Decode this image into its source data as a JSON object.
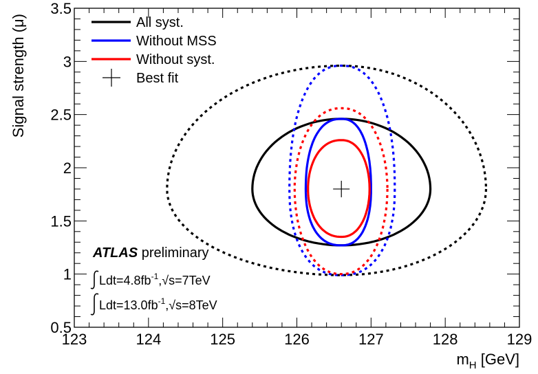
{
  "chart_data": {
    "type": "line",
    "xlabel_main": "m",
    "xlabel_sub": "H",
    "xlabel_unit": " [GeV]",
    "ylabel": "Signal strength (μ)",
    "xlim": [
      123,
      129
    ],
    "ylim": [
      0.5,
      3.5
    ],
    "x_ticks": [
      "123",
      "124",
      "125",
      "126",
      "127",
      "128",
      "129"
    ],
    "y_ticks": [
      "0.5",
      "1",
      "1.5",
      "2",
      "2.5",
      "3",
      "3.5"
    ],
    "best_fit": {
      "x": 126.6,
      "y": 1.8
    },
    "series": [
      {
        "name": "All syst.",
        "color": "#000000",
        "center": [
          126.6,
          1.8
        ],
        "contours": [
          {
            "level": "68%",
            "dash": false,
            "xmin": 125.4,
            "xmax": 127.8,
            "ymin": 1.27,
            "ymax": 2.46,
            "shape": "ellipse"
          },
          {
            "level": "95%",
            "dash": true,
            "xmin": 124.25,
            "xmax": 128.55,
            "ymin": 0.99,
            "ymax": 2.96,
            "shape": "ellipse"
          }
        ]
      },
      {
        "name": "Without MSS",
        "color": "#0000ff",
        "center": [
          126.6,
          1.8
        ],
        "contours": [
          {
            "level": "68%",
            "dash": false,
            "xmin": 126.12,
            "xmax": 127.0,
            "ymin": 1.27,
            "ymax": 2.46,
            "shape": "lens"
          },
          {
            "level": "95%",
            "dash": true,
            "xmin": 125.9,
            "xmax": 127.32,
            "ymin": 0.99,
            "ymax": 2.96,
            "shape": "lens"
          }
        ]
      },
      {
        "name": "Without syst.",
        "color": "#ff0000",
        "center": [
          126.6,
          1.8
        ],
        "contours": [
          {
            "level": "68%",
            "dash": false,
            "xmin": 126.15,
            "xmax": 126.98,
            "ymin": 1.35,
            "ymax": 2.26,
            "shape": "egg"
          },
          {
            "level": "95%",
            "dash": true,
            "xmin": 125.97,
            "xmax": 127.22,
            "ymin": 1.0,
            "ymax": 2.56,
            "shape": "egg"
          }
        ]
      }
    ],
    "legend": {
      "placement": "top-left",
      "entries": [
        {
          "label": "All syst.",
          "marker": "line",
          "color": "#000000"
        },
        {
          "label": "Without MSS",
          "marker": "line",
          "color": "#0000ff"
        },
        {
          "label": "Without syst.",
          "marker": "line",
          "color": "#ff0000"
        },
        {
          "label": "Best fit",
          "marker": "cross",
          "color": "#000000"
        }
      ]
    },
    "annotations": {
      "atlas": "ATLAS",
      "preliminary": " preliminary",
      "lumi1_a": "Ldt=4.8fb",
      "lumi1_sup": "-1",
      "lumi1_b": ",√s=7TeV",
      "lumi2_a": "Ldt=13.0fb",
      "lumi2_sup": "-1",
      "lumi2_b": ",√s=8TeV"
    }
  }
}
